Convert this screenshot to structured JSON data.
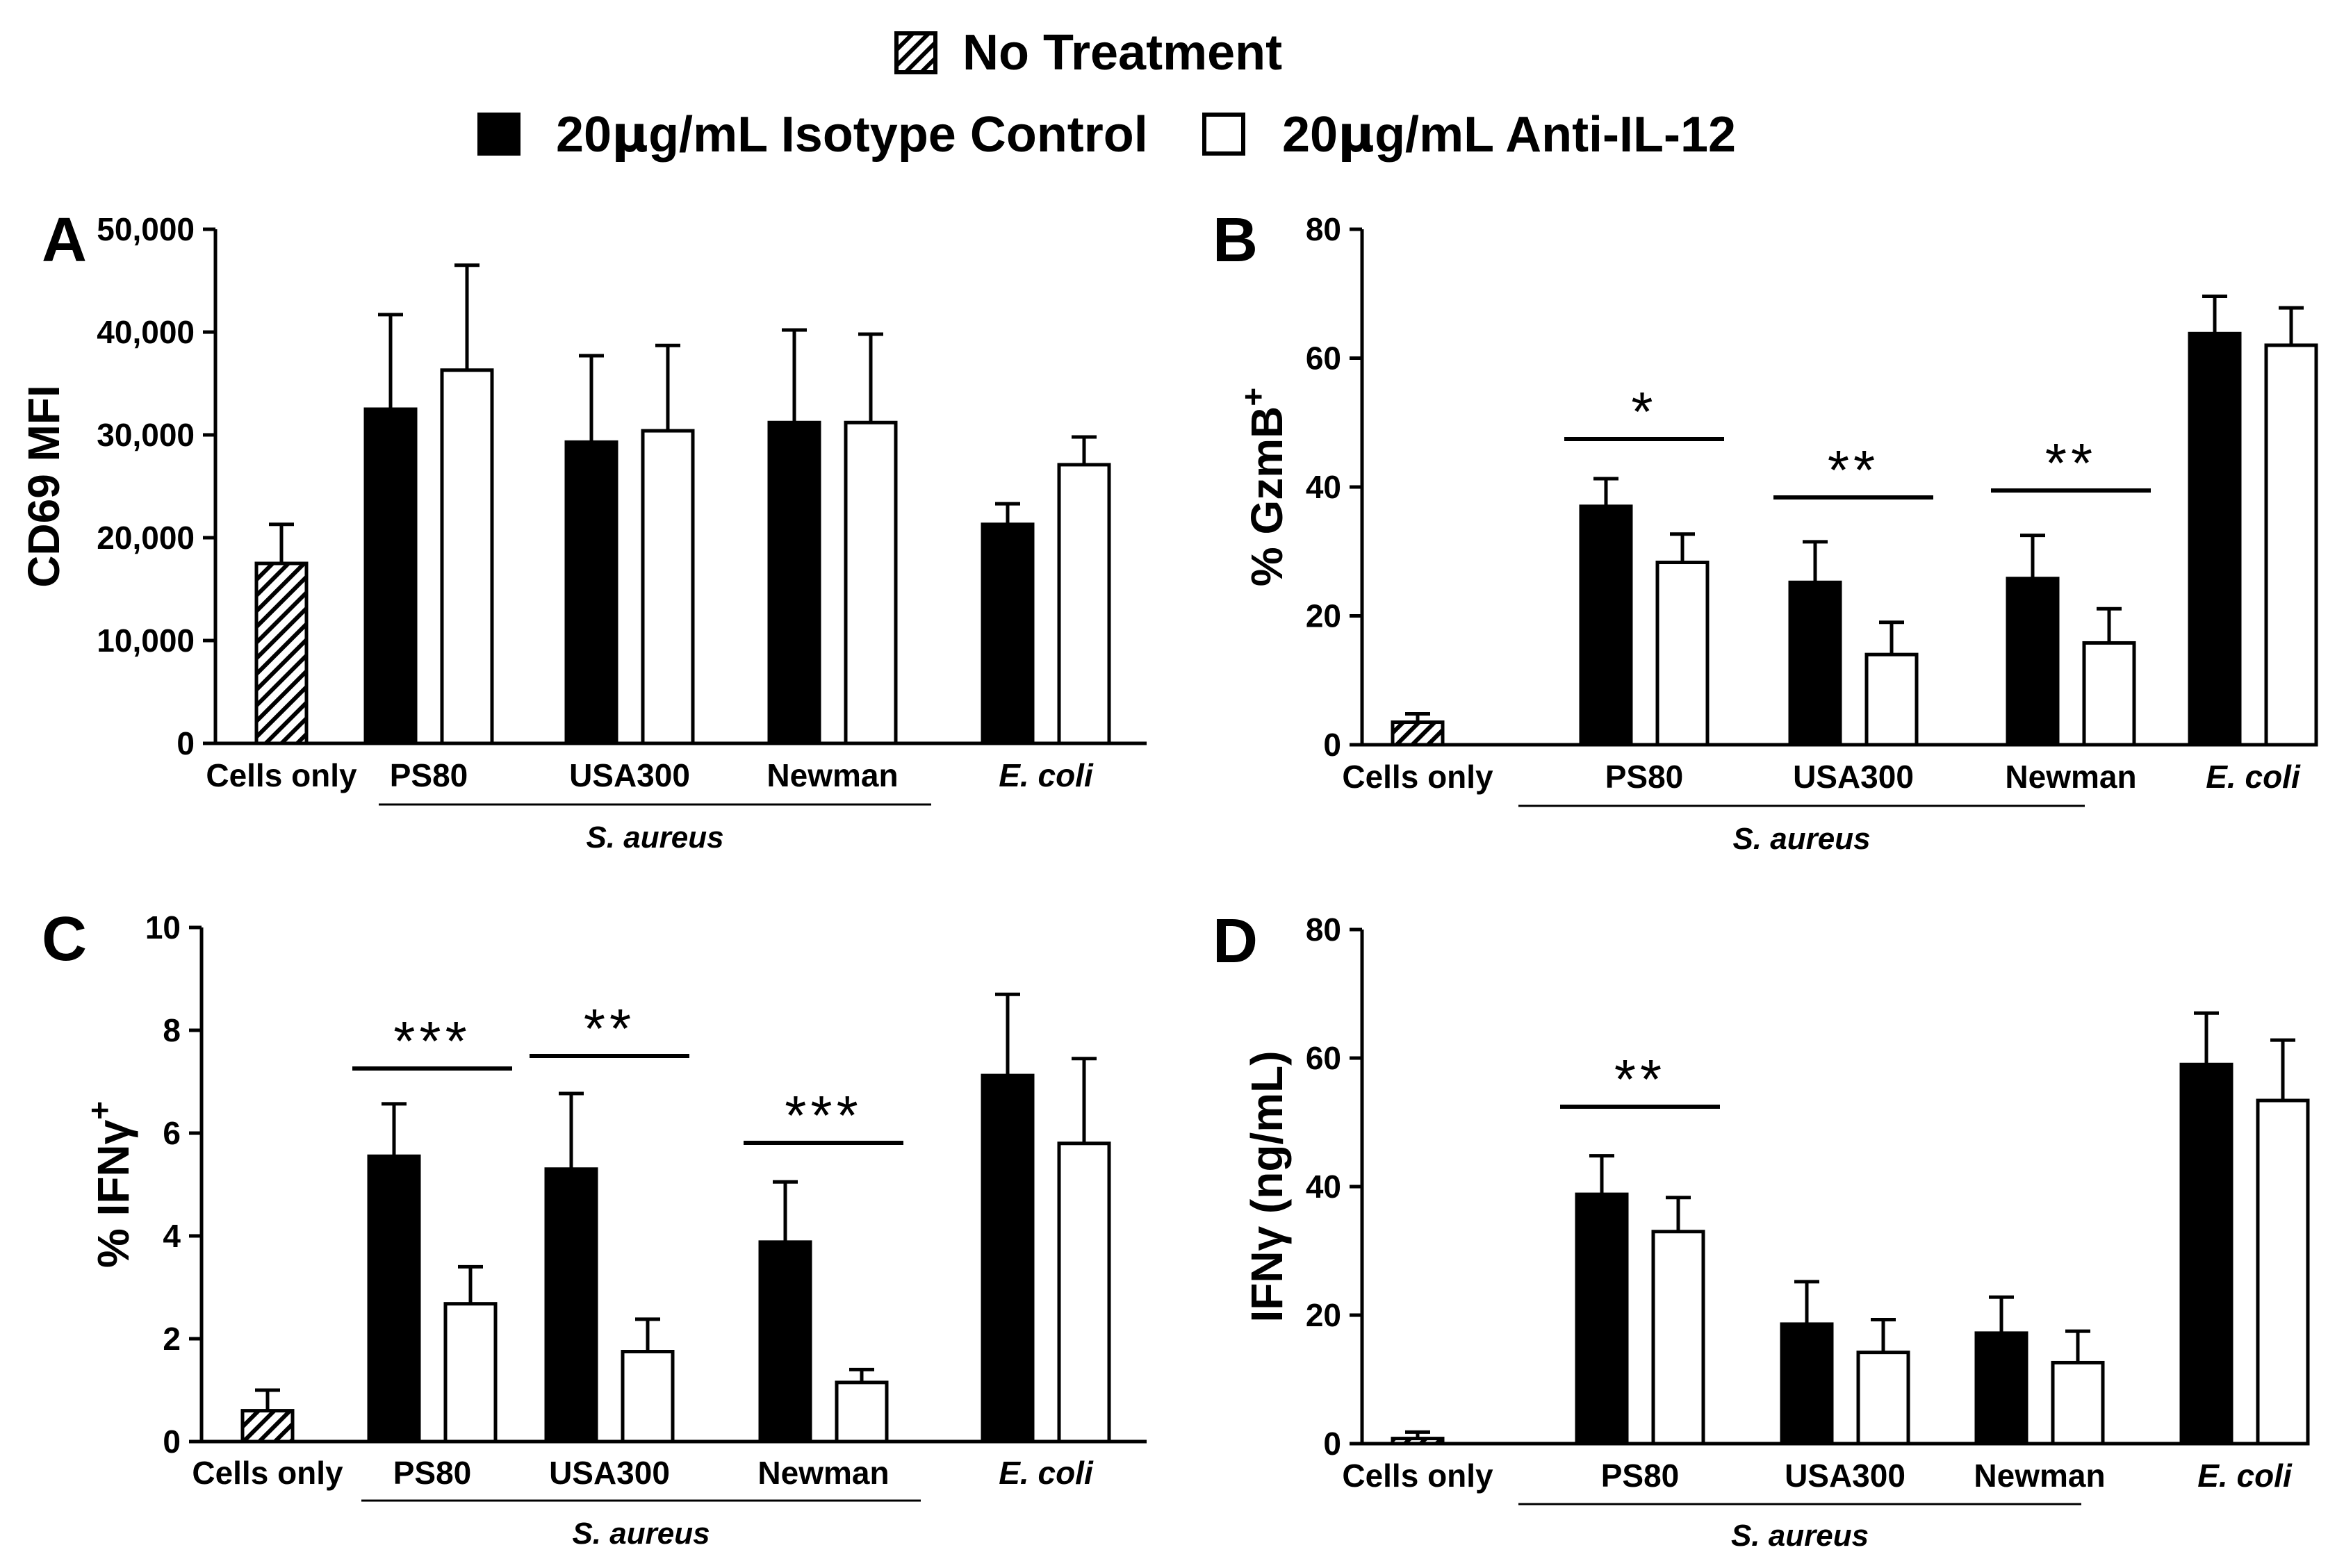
{
  "legend": {
    "no_treatment": "No Treatment",
    "isotype_prefix": "20",
    "isotype_mu": "μ",
    "isotype_suffix": "g/mL Isotype Control",
    "anti_prefix": "20",
    "anti_mu": "μ",
    "anti_suffix": "g/mL Anti-IL-12"
  },
  "chart_data": [
    {
      "panel": "A",
      "type": "bar",
      "ylabel": "CD69 MFI",
      "ylim": [
        0,
        50000
      ],
      "yticks": [
        "0",
        "10,000",
        "20,000",
        "30,000",
        "40,000",
        "50,000"
      ],
      "categories": [
        "Cells only",
        "PS80",
        "USA300",
        "Newman",
        "E. coli"
      ],
      "group_label": "S. aureus",
      "series": [
        {
          "name": "No Treatment",
          "values": [
            17500,
            null,
            null,
            null,
            null
          ],
          "errors": [
            3800,
            null,
            null,
            null,
            null
          ]
        },
        {
          "name": "20μg/mL Isotype Control",
          "values": [
            null,
            32500,
            29300,
            31200,
            21300
          ],
          "errors": [
            null,
            9200,
            8400,
            9000,
            2000
          ]
        },
        {
          "name": "20μg/mL Anti-IL-12",
          "values": [
            null,
            36300,
            30400,
            31200,
            27100
          ],
          "errors": [
            null,
            10200,
            8300,
            8600,
            2700
          ]
        }
      ],
      "significance": []
    },
    {
      "panel": "B",
      "type": "bar",
      "ylabel": "% GzmB",
      "ylabel_sup": "+",
      "ylim": [
        0,
        80
      ],
      "yticks": [
        "0",
        "20",
        "40",
        "60",
        "80"
      ],
      "categories": [
        "Cells only",
        "PS80",
        "USA300",
        "Newman",
        "E. coli"
      ],
      "group_label": "S. aureus",
      "series": [
        {
          "name": "No Treatment",
          "values": [
            3.5,
            null,
            null,
            null,
            null
          ],
          "errors": [
            1.3,
            null,
            null,
            null,
            null
          ]
        },
        {
          "name": "20μg/mL Isotype Control",
          "values": [
            null,
            37,
            25.2,
            25.8,
            63.8
          ],
          "errors": [
            null,
            4.3,
            6.3,
            6.7,
            5.8
          ]
        },
        {
          "name": "20μg/mL Anti-IL-12",
          "values": [
            null,
            28.3,
            14,
            15.8,
            62
          ],
          "errors": [
            null,
            4.4,
            5,
            5.3,
            5.8
          ]
        }
      ],
      "significance": [
        {
          "category": 1,
          "stars": "*"
        },
        {
          "category": 2,
          "stars": "**"
        },
        {
          "category": 3,
          "stars": "**"
        }
      ]
    },
    {
      "panel": "C",
      "type": "bar",
      "ylabel": "% IFNγ",
      "ylabel_sup": "+",
      "ylim": [
        0,
        10
      ],
      "yticks": [
        "0",
        "2",
        "4",
        "6",
        "8",
        "10"
      ],
      "categories": [
        "Cells only",
        "PS80",
        "USA300",
        "Newman",
        "E. coli"
      ],
      "group_label": "S. aureus",
      "series": [
        {
          "name": "No Treatment",
          "values": [
            0.6,
            null,
            null,
            null,
            null
          ],
          "errors": [
            0.4,
            null,
            null,
            null,
            null
          ]
        },
        {
          "name": "20μg/mL Isotype Control",
          "values": [
            null,
            5.55,
            5.3,
            3.88,
            7.12
          ],
          "errors": [
            null,
            1.02,
            1.47,
            1.17,
            1.58
          ]
        },
        {
          "name": "20μg/mL Anti-IL-12",
          "values": [
            null,
            2.68,
            1.75,
            1.15,
            5.8
          ],
          "errors": [
            null,
            0.72,
            0.63,
            0.25,
            1.65
          ]
        }
      ],
      "significance": [
        {
          "category": 1,
          "stars": "***"
        },
        {
          "category": 2,
          "stars": "**"
        },
        {
          "category": 3,
          "stars": "***"
        }
      ]
    },
    {
      "panel": "D",
      "type": "bar",
      "ylabel": "IFNγ (ng/mL)",
      "ylim": [
        0,
        80
      ],
      "yticks": [
        "0",
        "20",
        "40",
        "60",
        "80"
      ],
      "categories": [
        "Cells only",
        "PS80",
        "USA300",
        "Newman",
        "E. coli"
      ],
      "group_label": "S. aureus",
      "series": [
        {
          "name": "No Treatment",
          "values": [
            0.8,
            null,
            null,
            null,
            null
          ],
          "errors": [
            1.0,
            null,
            null,
            null,
            null
          ]
        },
        {
          "name": "20μg/mL Isotype Control",
          "values": [
            null,
            38.8,
            18.6,
            17.2,
            59
          ],
          "errors": [
            null,
            6,
            6.6,
            5.6,
            8
          ]
        },
        {
          "name": "20μg/mL Anti-IL-12",
          "values": [
            null,
            33,
            14.2,
            12.6,
            53.4
          ],
          "errors": [
            null,
            5.3,
            5.1,
            4.9,
            9.4
          ]
        }
      ],
      "significance": [
        {
          "category": 1,
          "stars": "**"
        }
      ]
    }
  ]
}
